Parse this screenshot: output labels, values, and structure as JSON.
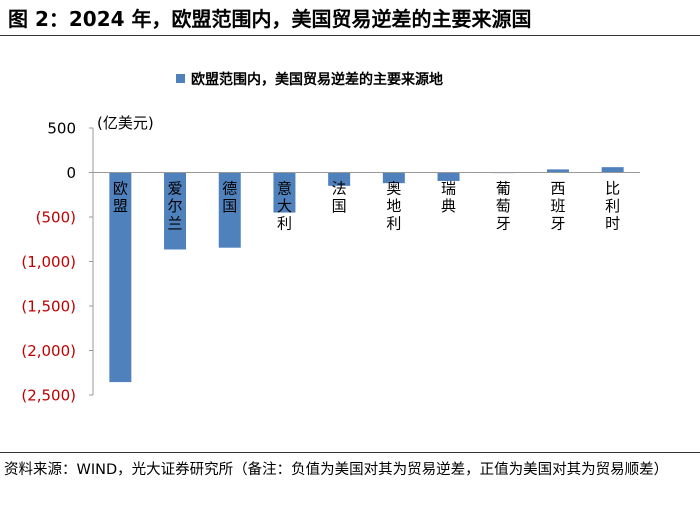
{
  "figure": {
    "title": "图 2：2024 年，欧盟范围内，美国贸易逆差的主要来源国",
    "source_note": "资料来源：WIND，光大证券研究所（备注：负值为美国对其为贸易逆差，正值为美国对其为贸易顺差）"
  },
  "colors": {
    "bar": "#4f81bd",
    "negative_tick": "#c00000",
    "axis": "#999999"
  },
  "chart_data": {
    "type": "bar",
    "legend": "欧盟范围内，美国贸易逆差的主要来源地",
    "legend_position": "top-center",
    "unit_label": "(亿美元)",
    "categories": [
      "欧盟",
      "爱尔兰",
      "德国",
      "意大利",
      "法国",
      "奥地利",
      "瑞典",
      "葡萄牙",
      "西班牙",
      "比利时"
    ],
    "values": [
      -2355,
      -865,
      -845,
      -450,
      -150,
      -120,
      -95,
      -5,
      35,
      60
    ],
    "ylim": [
      -2500,
      500
    ],
    "yticks": [
      500,
      0,
      -500,
      -1000,
      -1500,
      -2000,
      -2500
    ],
    "ytick_labels": [
      "500",
      "0",
      "(500)",
      "(1,000)",
      "(1,500)",
      "(2,000)",
      "(2,500)"
    ],
    "grid": false
  }
}
